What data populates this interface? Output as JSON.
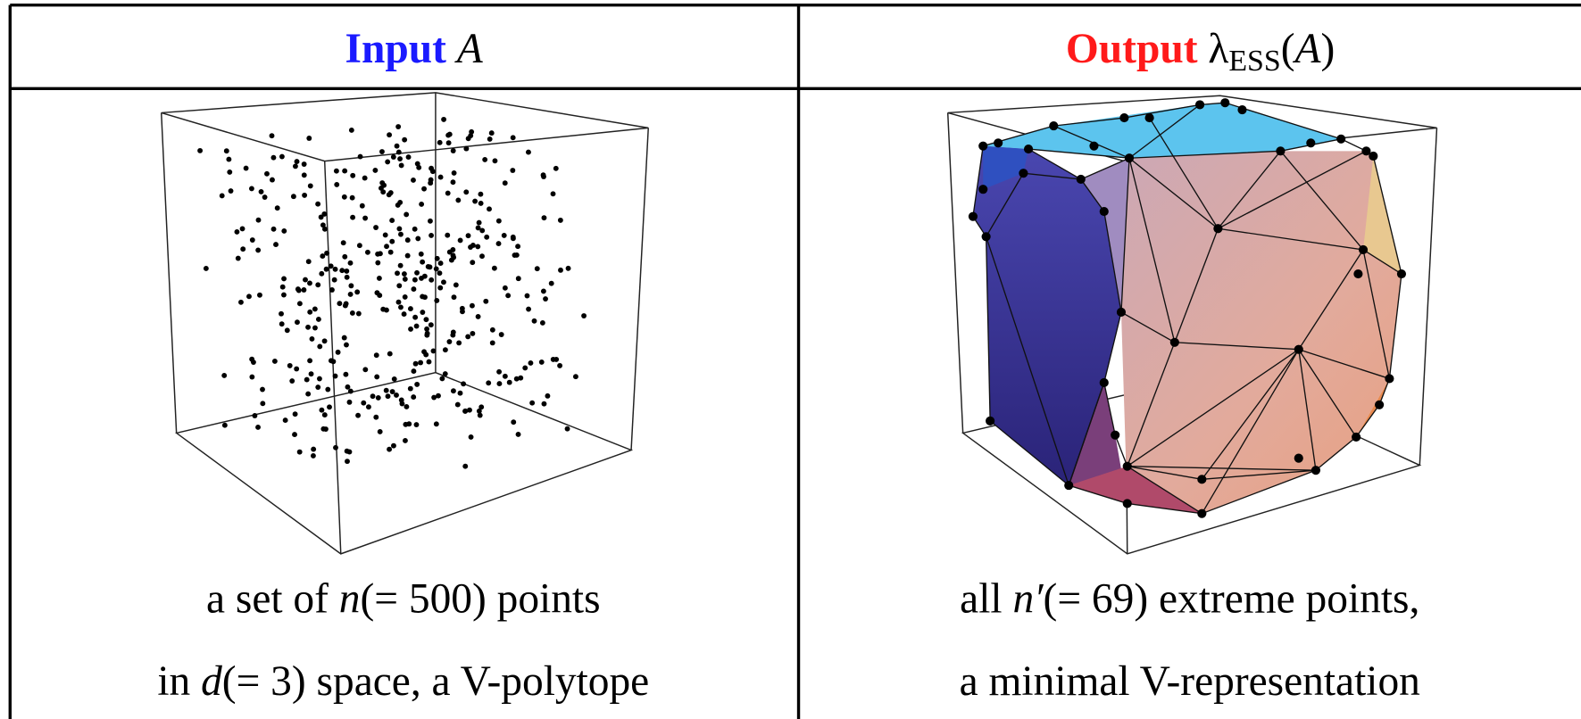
{
  "header": {
    "left": {
      "label": "Input",
      "symbol": "A"
    },
    "right": {
      "label": "Output",
      "parts": [
        "λ",
        "ESS",
        "(",
        "A",
        ")"
      ]
    }
  },
  "captions": {
    "left": [
      [
        "a set of ",
        "n",
        "(= 500) points"
      ],
      [
        "in ",
        "d",
        "(= 3) space, a V-polytope"
      ]
    ],
    "right": [
      [
        "all ",
        "n′",
        "(= 69) extreme points,"
      ],
      [
        "a minimal V-representation"
      ]
    ]
  }
}
